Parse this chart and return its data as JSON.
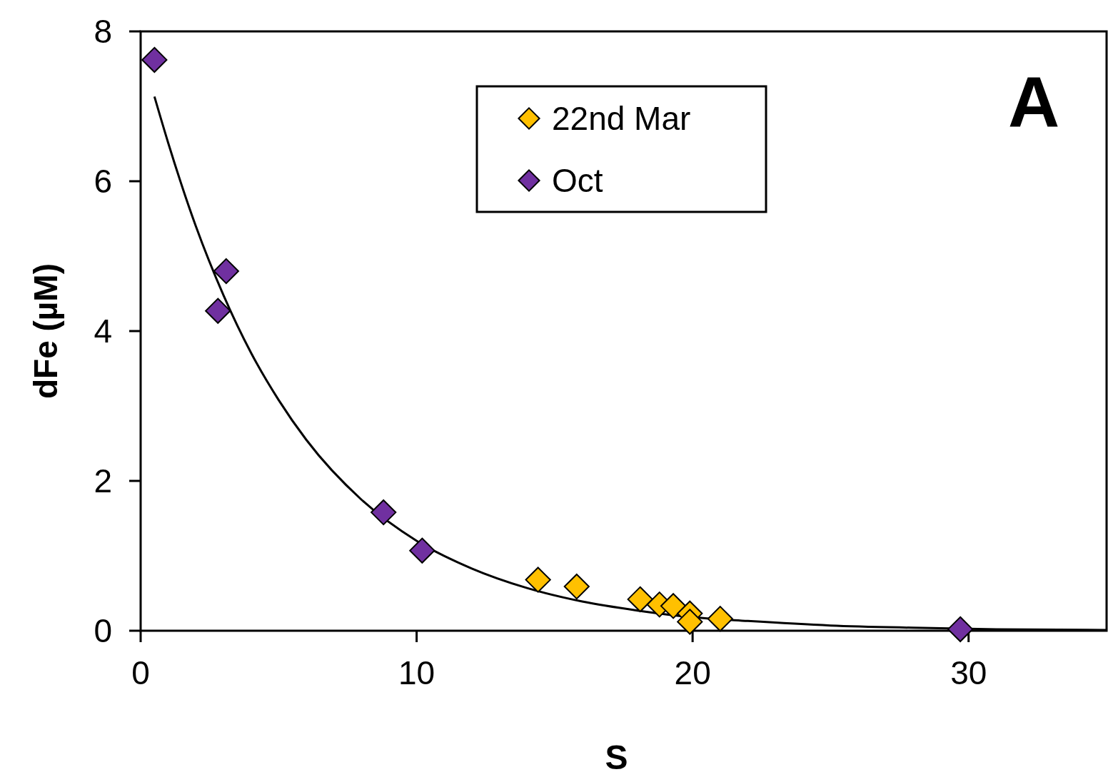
{
  "chart_data": {
    "type": "scatter",
    "xlabel": "S",
    "ylabel": "dFe (µM)",
    "annotations": [
      "A"
    ],
    "xlim": [
      0,
      35
    ],
    "ylim": [
      0,
      8
    ],
    "xticks": [
      0,
      10,
      20,
      30
    ],
    "yticks": [
      0,
      2,
      4,
      6,
      8
    ],
    "marker": "diamond",
    "legend": "top",
    "grid": false,
    "series": [
      {
        "name": "22nd Mar",
        "color": "#ffc000",
        "x": [
          14.4,
          15.8,
          18.1,
          18.8,
          19.3,
          19.9,
          19.9,
          21.0
        ],
        "values": [
          0.68,
          0.59,
          0.42,
          0.35,
          0.33,
          0.23,
          0.12,
          0.16
        ]
      },
      {
        "name": "Oct",
        "color": "#7030a0",
        "x": [
          0.5,
          2.8,
          3.1,
          8.8,
          10.2,
          29.7
        ],
        "values": [
          7.62,
          4.27,
          4.8,
          1.58,
          1.07,
          0.02
        ]
      },
      {
        "type": "line",
        "color": "#000000",
        "marker": "none",
        "x": [
          0.5,
          1,
          2,
          3,
          4,
          5,
          6,
          8,
          10,
          12,
          14,
          16,
          18,
          20,
          22,
          25,
          28,
          31,
          35
        ],
        "values": [
          7.13,
          6.51,
          5.4,
          4.48,
          3.71,
          3.08,
          2.55,
          1.75,
          1.2,
          0.83,
          0.57,
          0.39,
          0.27,
          0.18,
          0.13,
          0.07,
          0.04,
          0.02,
          0.01
        ]
      }
    ]
  }
}
